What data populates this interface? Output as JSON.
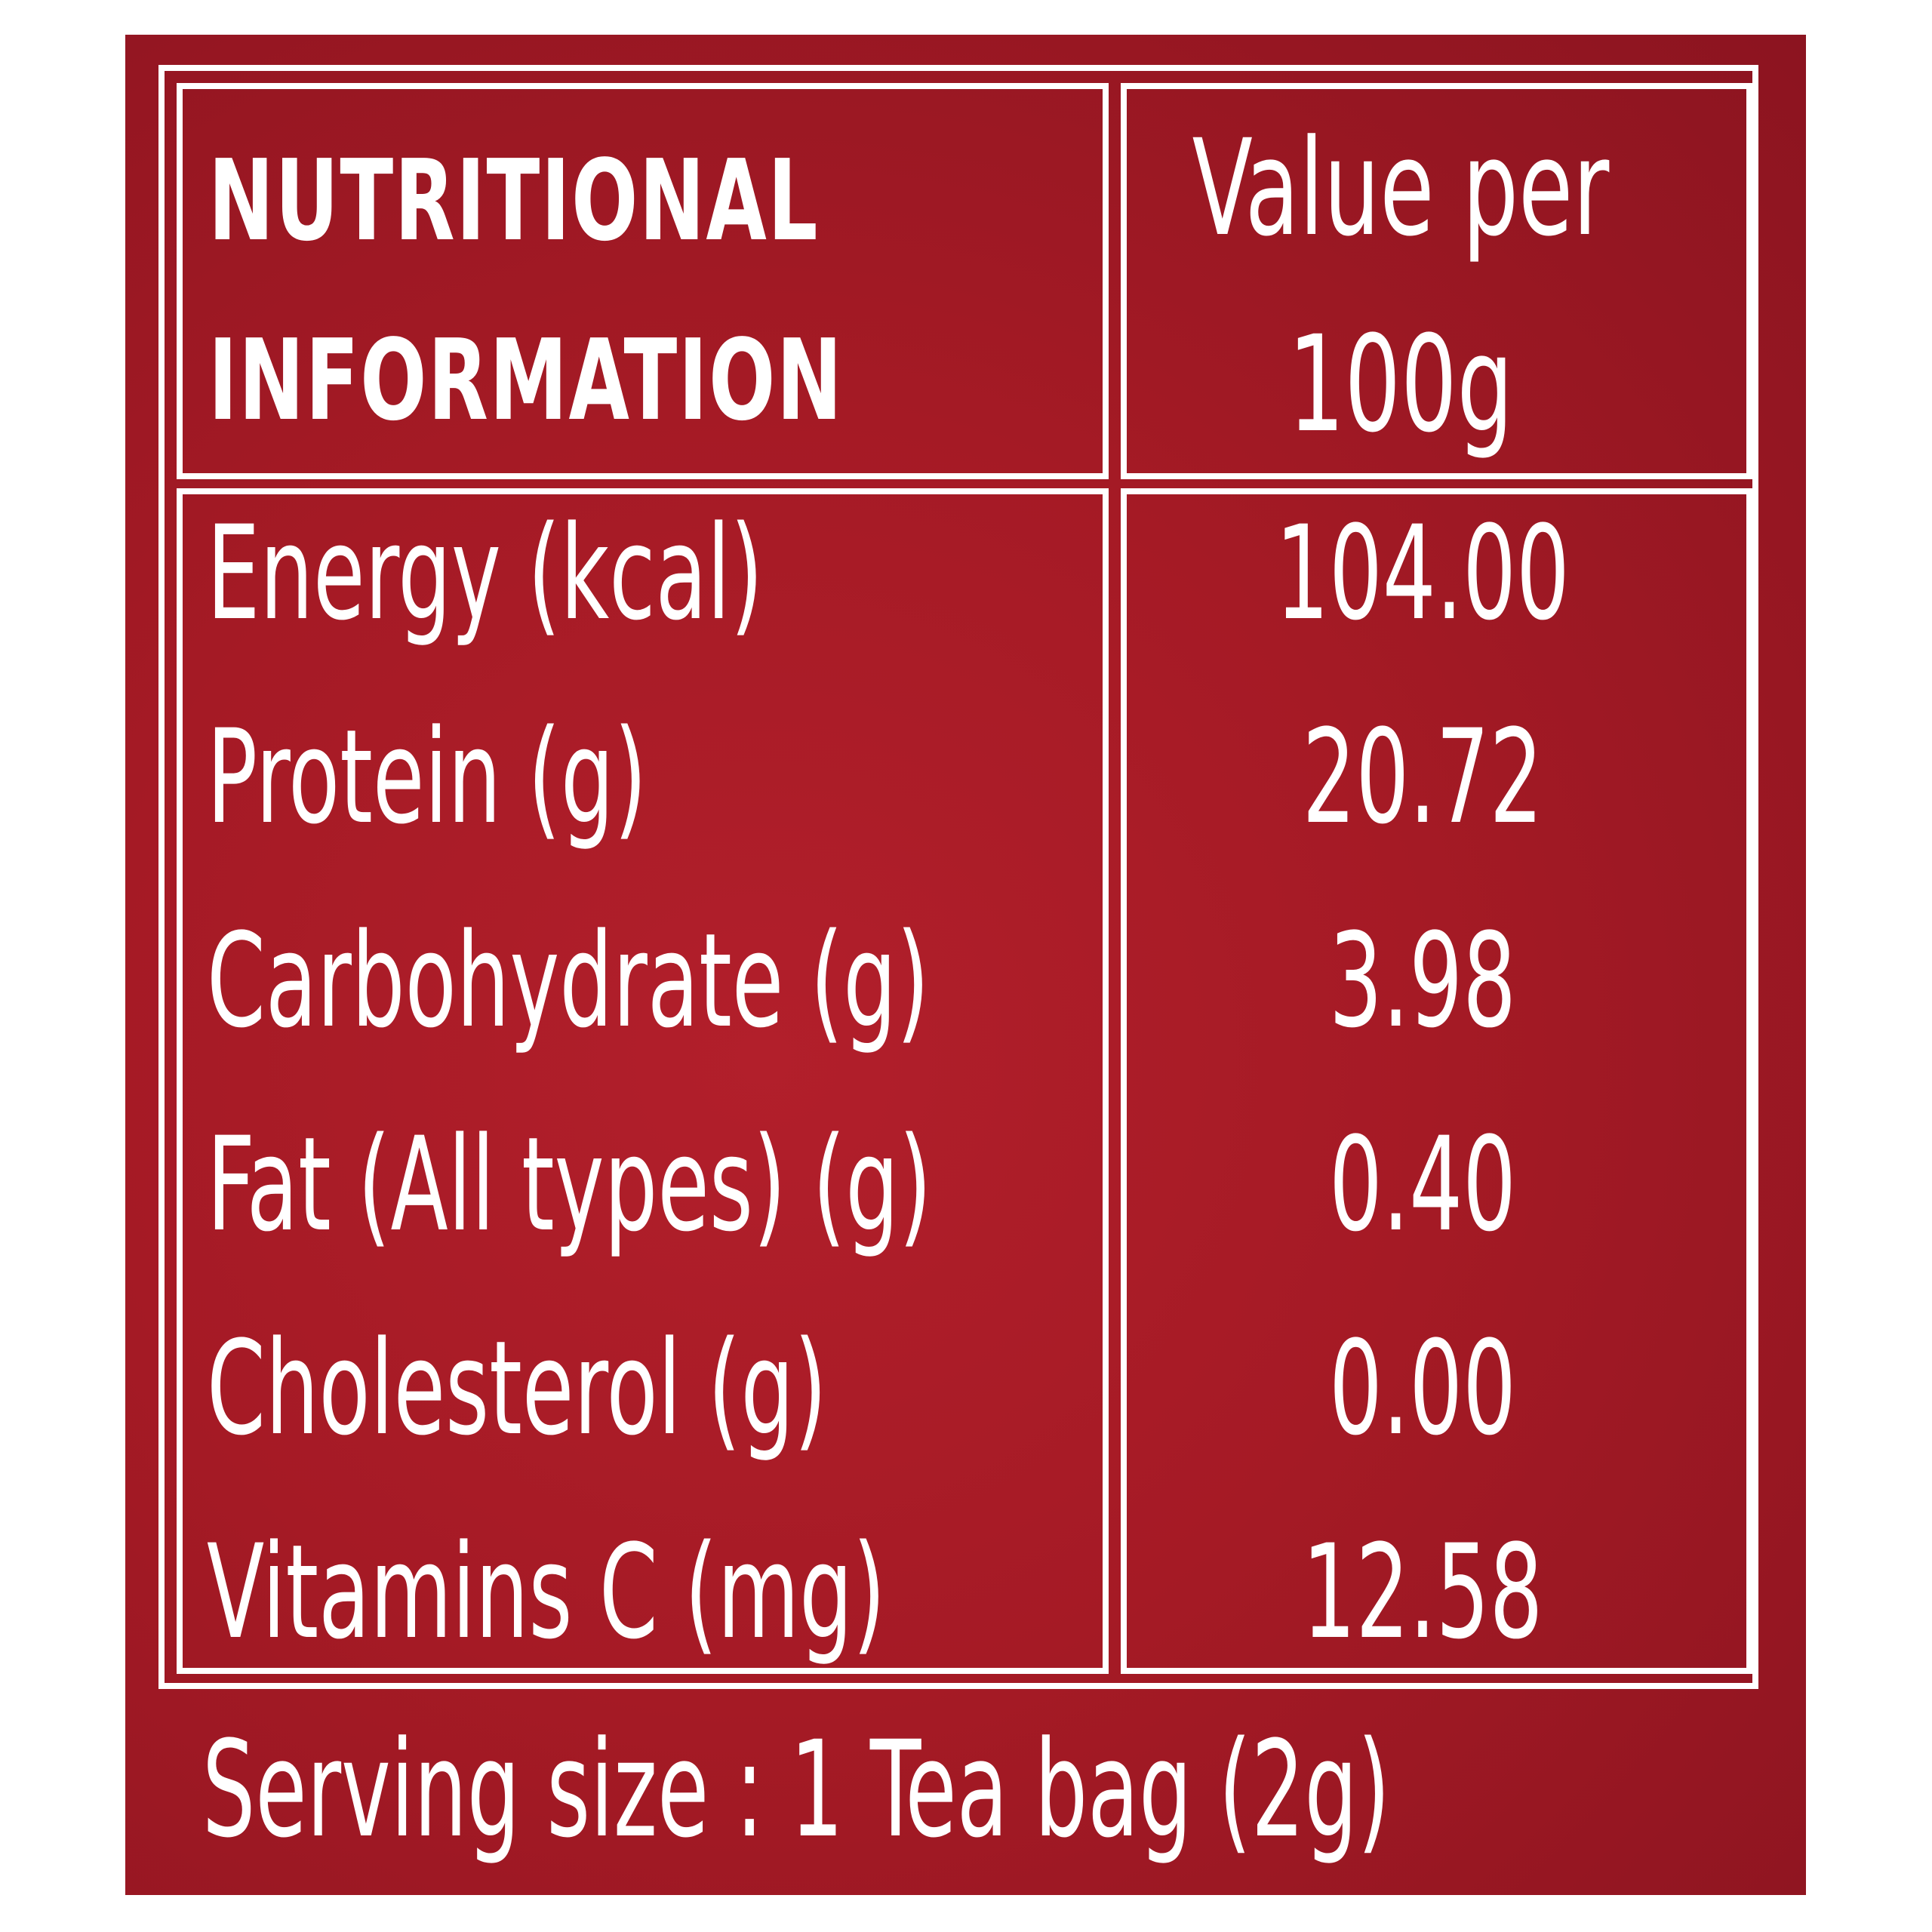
{
  "header": {
    "title_line1": "NUTRITIONAL",
    "title_line2": "INFORMATION",
    "value_line1": "Value per",
    "value_line2": "100g"
  },
  "rows": [
    {
      "label": "Energy (kcal)",
      "value": "104.00"
    },
    {
      "label": "Protein (g)",
      "value": "20.72"
    },
    {
      "label": "Carbohydrate (g)",
      "value": "3.98"
    },
    {
      "label": "Fat (All types) (g)",
      "value": "0.40"
    },
    {
      "label": "Cholesterol (g)",
      "value": "0.00"
    },
    {
      "label": "Vitamins C (mg)",
      "value": "12.58"
    }
  ],
  "footer": {
    "serving": "Serving size : 1 Tea bag (2g)"
  },
  "colors": {
    "background": "#a51a25",
    "text": "#ffffff"
  }
}
